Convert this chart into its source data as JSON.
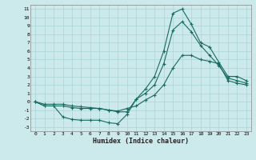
{
  "xlabel": "Humidex (Indice chaleur)",
  "bg_color": "#cce9ec",
  "line_color": "#1a6b62",
  "grid_color": "#b0d8dc",
  "xlim": [
    -0.5,
    23.5
  ],
  "ylim": [
    -3.5,
    11.5
  ],
  "xticks": [
    0,
    1,
    2,
    3,
    4,
    5,
    6,
    7,
    8,
    9,
    10,
    11,
    12,
    13,
    14,
    15,
    16,
    17,
    18,
    19,
    20,
    21,
    22,
    23
  ],
  "yticks": [
    -3,
    -2,
    -1,
    0,
    1,
    2,
    3,
    4,
    5,
    6,
    7,
    8,
    9,
    10,
    11
  ],
  "line1_x": [
    0,
    1,
    2,
    3,
    4,
    5,
    6,
    7,
    8,
    9,
    10,
    11,
    12,
    13,
    14,
    15,
    16,
    17,
    18,
    19,
    20,
    21,
    22,
    23
  ],
  "line1_y": [
    0.0,
    -0.5,
    -0.5,
    -1.8,
    -2.1,
    -2.2,
    -2.2,
    -2.2,
    -2.5,
    -2.6,
    -1.5,
    0.3,
    1.5,
    3.0,
    6.0,
    10.5,
    11.0,
    9.2,
    7.0,
    6.5,
    4.7,
    3.0,
    3.0,
    2.5
  ],
  "line2_x": [
    0,
    1,
    2,
    3,
    4,
    5,
    6,
    7,
    8,
    9,
    10,
    11,
    12,
    13,
    14,
    15,
    16,
    17,
    18,
    19,
    20,
    21,
    22,
    23
  ],
  "line2_y": [
    0.0,
    -0.5,
    -0.5,
    -0.5,
    -0.7,
    -0.8,
    -0.8,
    -0.8,
    -1.0,
    -1.2,
    -1.2,
    0.3,
    1.0,
    2.0,
    4.5,
    8.5,
    9.5,
    8.3,
    6.7,
    5.5,
    4.3,
    2.8,
    2.5,
    2.2
  ],
  "line3_x": [
    0,
    1,
    2,
    3,
    4,
    5,
    6,
    7,
    8,
    9,
    10,
    11,
    12,
    13,
    14,
    15,
    16,
    17,
    18,
    19,
    20,
    21,
    22,
    23
  ],
  "line3_y": [
    0.0,
    -0.3,
    -0.3,
    -0.3,
    -0.5,
    -0.6,
    -0.7,
    -0.8,
    -1.0,
    -1.1,
    -0.8,
    -0.5,
    0.2,
    0.8,
    2.0,
    4.0,
    5.5,
    5.5,
    5.0,
    4.8,
    4.5,
    2.5,
    2.2,
    2.0
  ]
}
